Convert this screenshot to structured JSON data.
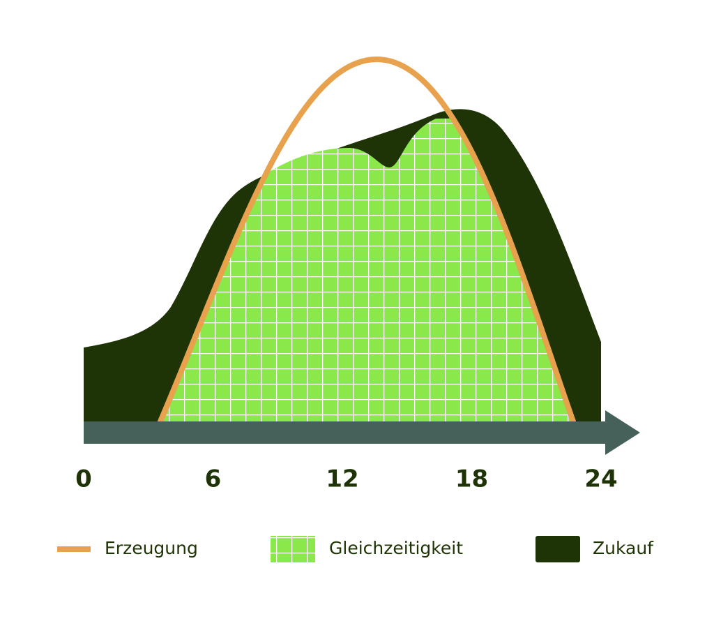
{
  "axis": {
    "range": [
      0,
      24
    ],
    "ticks": [
      0,
      6,
      12,
      18,
      24
    ]
  },
  "legend": [
    {
      "label": "Erzeugung",
      "color": "#e8a24e"
    },
    {
      "label": "Gleichzeitigkeit",
      "color": "#8ae84a"
    },
    {
      "label": "Zukauf",
      "color": "#1e3306"
    }
  ]
}
